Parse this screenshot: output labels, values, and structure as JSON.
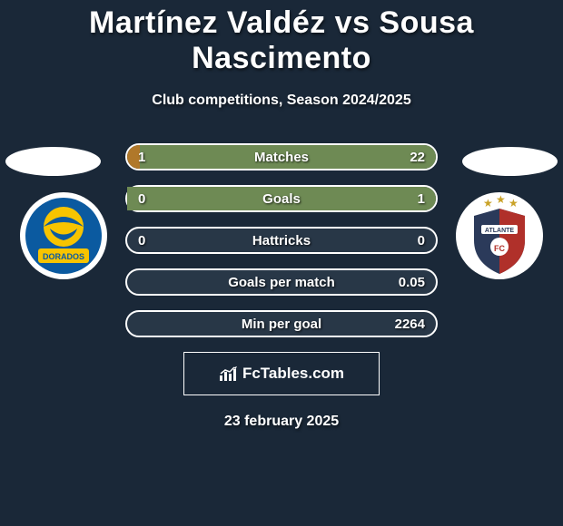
{
  "title": "Martínez Valdéz vs Sousa Nascimento",
  "subtitle": "Club competitions, Season 2024/2025",
  "date": "23 february 2025",
  "brand": "FcTables.com",
  "colors": {
    "background": "#1a2838",
    "row_bg": "#283747",
    "row_border": "#ffffff",
    "fill_left": "#b0782a",
    "fill_right": "#6e8a54",
    "text": "#ffffff"
  },
  "badges": {
    "left": {
      "name": "dorados",
      "ring": "#ffffff",
      "fill": "#0b5aa0",
      "accent": "#f7c400"
    },
    "right": {
      "name": "club-2",
      "ring": "#ffffff",
      "fill": "#2b3a5a",
      "accent": "#b0302a",
      "star": "#c9a227"
    }
  },
  "rows": [
    {
      "label": "Matches",
      "left": "1",
      "right": "22",
      "fill_left_pct": 4,
      "fill_right_pct": 96
    },
    {
      "label": "Goals",
      "left": "0",
      "right": "1",
      "fill_left_pct": 0,
      "fill_right_pct": 100
    },
    {
      "label": "Hattricks",
      "left": "0",
      "right": "0",
      "fill_left_pct": 0,
      "fill_right_pct": 0
    },
    {
      "label": "Goals per match",
      "left": "",
      "right": "0.05",
      "fill_left_pct": 0,
      "fill_right_pct": 0
    },
    {
      "label": "Min per goal",
      "left": "",
      "right": "2264",
      "fill_left_pct": 0,
      "fill_right_pct": 0
    }
  ]
}
